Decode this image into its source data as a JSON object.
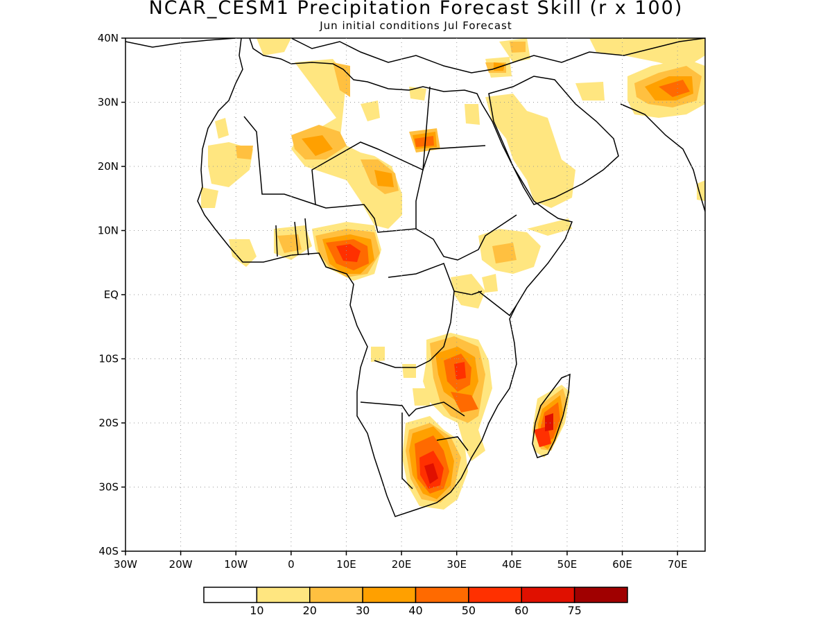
{
  "title": "NCAR_CESM1 Precipitation Forecast Skill (r x 100)",
  "subtitle": "Jun initial conditions  Jul Forecast",
  "map": {
    "lon_range": [
      -30,
      75
    ],
    "lat_range": [
      -40,
      40
    ],
    "lon_ticks": [
      "30W",
      "20W",
      "10W",
      "0",
      "10E",
      "20E",
      "30E",
      "40E",
      "50E",
      "60E",
      "70E"
    ],
    "lat_ticks": [
      "40N",
      "30N",
      "20N",
      "10N",
      "EQ",
      "10S",
      "20S",
      "30S",
      "40S"
    ],
    "grid": true
  },
  "colorbar": {
    "colors": [
      "#ffffff",
      "#ffe680",
      "#ffc040",
      "#ffa000",
      "#ff6a00",
      "#ff3000",
      "#e01000",
      "#a00000"
    ],
    "labels": [
      "10",
      "20",
      "30",
      "40",
      "50",
      "60",
      "75"
    ]
  }
}
